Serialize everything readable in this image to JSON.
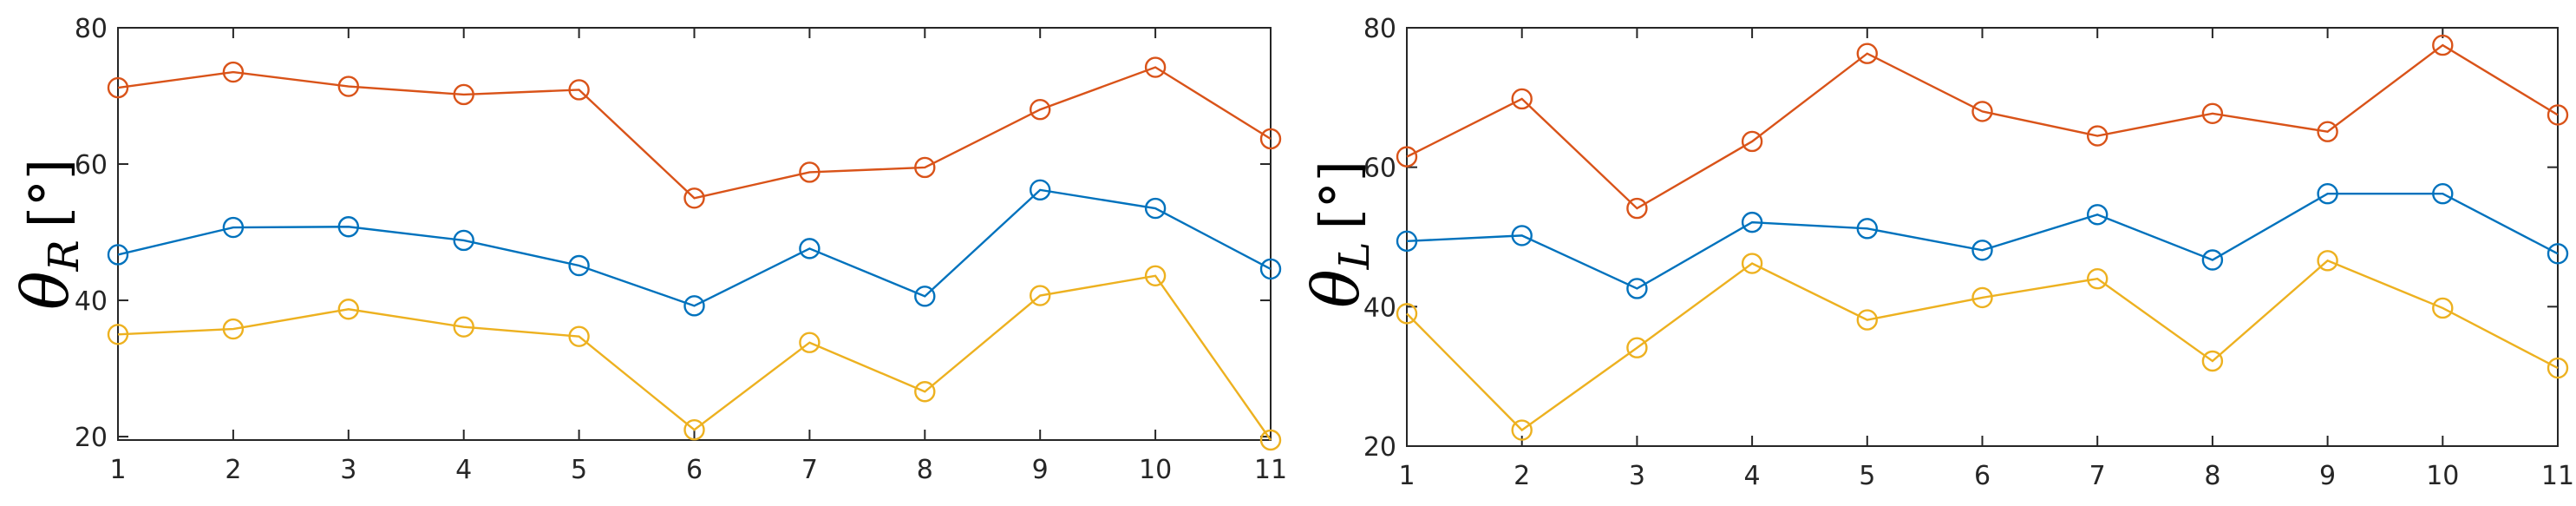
{
  "chart_data": [
    {
      "type": "line",
      "ylabel": {
        "symbol": "θ",
        "subscript": "R",
        "unit": "[°]"
      },
      "x": [
        1,
        2,
        3,
        4,
        5,
        6,
        7,
        8,
        9,
        10,
        11
      ],
      "xlim": [
        1,
        11
      ],
      "ylim": [
        19.5,
        80
      ],
      "yticks": [
        20,
        40,
        60,
        80
      ],
      "grid": false,
      "series": [
        {
          "color": "#D95319",
          "values": [
            71.2,
            73.5,
            71.4,
            70.2,
            70.9,
            55,
            58.8,
            59.5,
            68,
            74.2,
            63.7
          ]
        },
        {
          "color": "#0072BD",
          "values": [
            46.7,
            50.7,
            50.8,
            48.8,
            45.1,
            39.2,
            47.6,
            40.6,
            56.2,
            53.5,
            44.6
          ]
        },
        {
          "color": "#EDB120",
          "values": [
            35,
            35.8,
            38.7,
            36.1,
            34.7,
            21,
            33.8,
            26.6,
            40.7,
            43.6,
            19.5
          ]
        }
      ]
    },
    {
      "type": "line",
      "ylabel": {
        "symbol": "θ",
        "subscript": "L",
        "unit": "[°]"
      },
      "x": [
        1,
        2,
        3,
        4,
        5,
        6,
        7,
        8,
        9,
        10,
        11
      ],
      "xlim": [
        1,
        11
      ],
      "ylim": [
        20,
        80
      ],
      "yticks": [
        20,
        40,
        60,
        80
      ],
      "grid": false,
      "series": [
        {
          "color": "#D95319",
          "values": [
            61.5,
            69.8,
            54.1,
            63.7,
            76.3,
            68,
            64.5,
            67.7,
            65.1,
            77.5,
            67.5
          ]
        },
        {
          "color": "#0072BD",
          "values": [
            49.4,
            50.2,
            42.6,
            52.1,
            51.2,
            48.1,
            53.2,
            46.7,
            56.2,
            56.2,
            47.6
          ]
        },
        {
          "color": "#EDB120",
          "values": [
            39,
            22.3,
            34.1,
            46.2,
            38.1,
            41.3,
            44,
            32.2,
            46.6,
            39.8,
            31.2
          ]
        }
      ]
    }
  ]
}
